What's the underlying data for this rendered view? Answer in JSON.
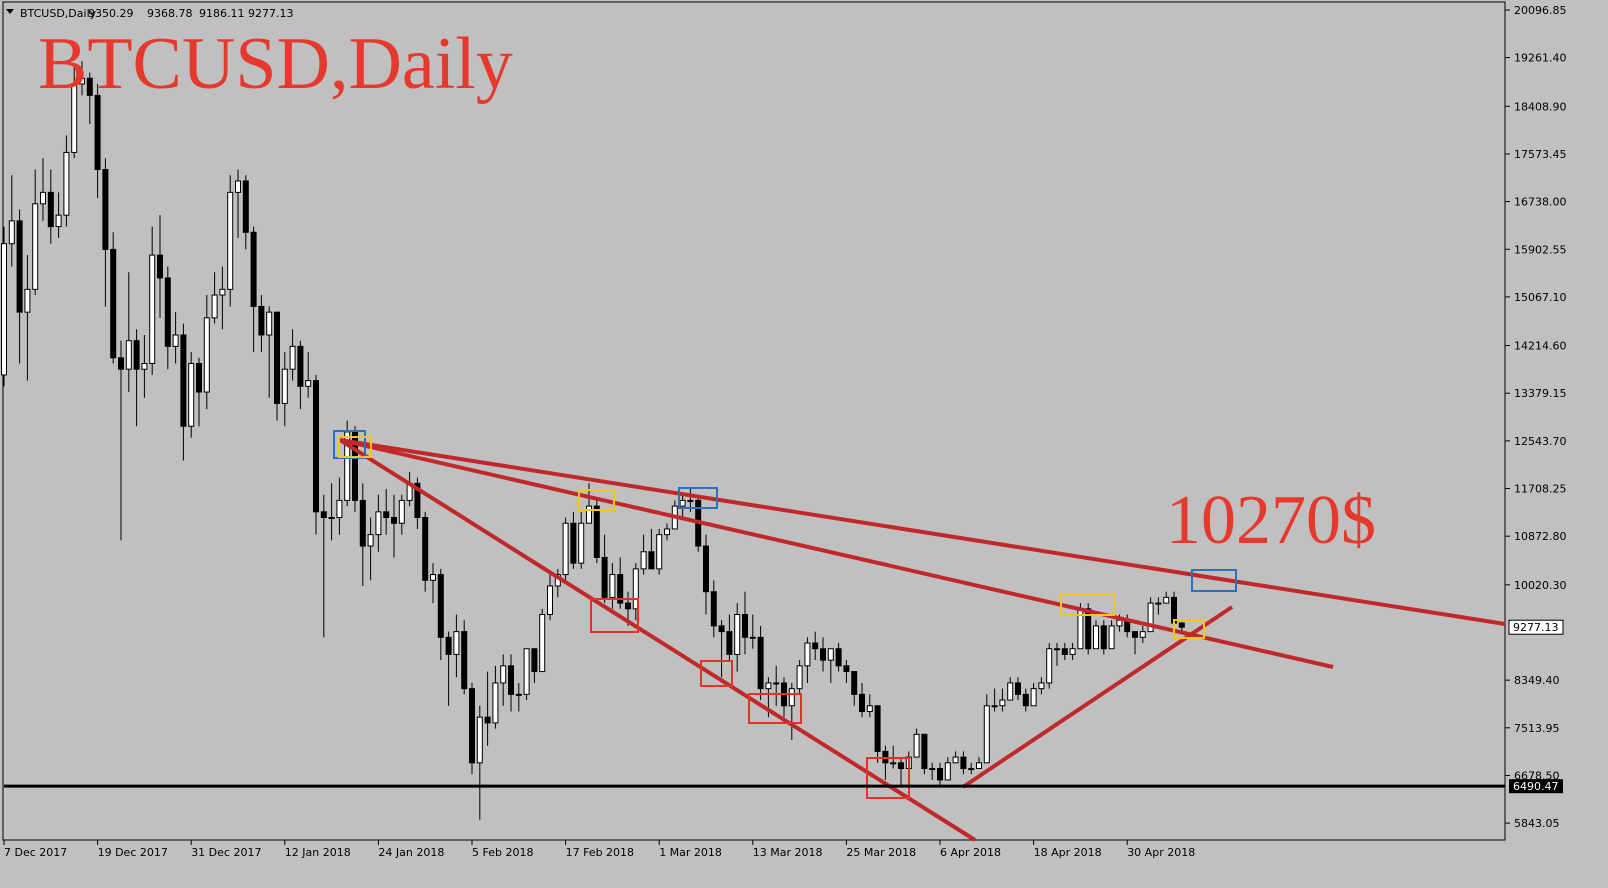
{
  "chart_data": {
    "type": "candlestick",
    "title": "BTCUSD,Daily",
    "annotation": "10270$",
    "background": "#c0c0c0",
    "up_color": "#ffffff",
    "down_color": "#000000",
    "title_color": "#e5392e",
    "level": 6490.47,
    "categories": [
      "7 Dec 2017",
      null,
      null,
      null,
      null,
      null,
      null,
      null,
      null,
      null,
      null,
      null,
      "19 Dec 2017",
      null,
      null,
      null,
      null,
      null,
      null,
      null,
      null,
      null,
      null,
      null,
      "31 Dec 2017",
      null,
      null,
      null,
      null,
      null,
      null,
      null,
      null,
      null,
      null,
      null,
      "12 Jan 2018",
      null,
      null,
      null,
      null,
      null,
      null,
      null,
      null,
      null,
      null,
      null,
      "24 Jan 2018",
      null,
      null,
      null,
      null,
      null,
      null,
      null,
      null,
      null,
      null,
      null,
      "5 Feb 2018",
      null,
      null,
      null,
      null,
      null,
      null,
      null,
      null,
      null,
      null,
      null,
      "17 Feb 2018",
      null,
      null,
      null,
      null,
      null,
      null,
      null,
      null,
      null,
      null,
      null,
      "1 Mar 2018",
      null,
      null,
      null,
      null,
      null,
      null,
      null,
      null,
      null,
      null,
      null,
      "13 Mar 2018",
      null,
      null,
      null,
      null,
      null,
      null,
      null,
      null,
      null,
      null,
      null,
      "25 Mar 2018",
      null,
      null,
      null,
      null,
      null,
      null,
      null,
      null,
      null,
      null,
      null,
      "6 Apr 2018",
      null,
      null,
      null,
      null,
      null,
      null,
      null,
      null,
      null,
      null,
      null,
      "18 Apr 2018",
      null,
      null,
      null,
      null,
      null,
      null,
      null,
      null,
      null,
      null,
      null,
      "30 Apr 2018",
      null,
      null,
      null,
      null,
      null,
      null,
      null
    ],
    "open": [
      13700,
      16000,
      16400,
      14800,
      15200,
      16700,
      16900,
      16300,
      16500,
      17600,
      18800,
      18900,
      18600,
      17300,
      15900,
      14000,
      13800,
      14300,
      13800,
      13900,
      15800,
      15400,
      14200,
      14400,
      12800,
      13900,
      13400,
      14700,
      15100,
      15200,
      16900,
      17100,
      16200,
      14900,
      14400,
      14800,
      13200,
      13800,
      14200,
      13500,
      13600,
      11300,
      11200,
      11200,
      11500,
      12700,
      11500,
      10700,
      10900,
      11300,
      11200,
      11100,
      11500,
      11800,
      11200,
      10100,
      10200,
      9100,
      8800,
      9200,
      8200,
      6900,
      7700,
      7600,
      8300,
      8600,
      8100,
      8100,
      8900,
      8500,
      9500,
      10000,
      10200,
      11100,
      10400,
      11100,
      11400,
      10500,
      9800,
      10200,
      9700,
      9600,
      10300,
      10600,
      10300,
      10900,
      11000,
      11400,
      11500,
      11500,
      10700,
      9900,
      9300,
      9200,
      8800,
      9500,
      9100,
      9100,
      8200,
      8300,
      8300,
      7900,
      8200,
      8600,
      9000,
      8900,
      8700,
      8900,
      8600,
      8500,
      8100,
      7800,
      7900,
      7100,
      6900,
      6900,
      6800,
      7000,
      7400,
      6800,
      6800,
      6600,
      6900,
      7000,
      6800,
      6800,
      6900,
      7900,
      7900,
      8000,
      8300,
      8100,
      7900,
      8200,
      8300,
      8900,
      8900,
      8800,
      8900,
      9600,
      8900,
      9300,
      8900,
      9300,
      9400,
      9200,
      9100,
      9200,
      9700,
      9700,
      9800,
      9350.29
    ],
    "high": [
      16300,
      17200,
      16600,
      15800,
      17300,
      17500,
      17300,
      16900,
      17900,
      19100,
      19200,
      19000,
      18800,
      17500,
      16200,
      14300,
      15500,
      14500,
      14400,
      16300,
      16500,
      15600,
      14800,
      14600,
      14100,
      14000,
      15100,
      15500,
      15600,
      17200,
      17300,
      17200,
      16300,
      15100,
      14900,
      14800,
      14100,
      14500,
      14300,
      14100,
      13700,
      11600,
      11800,
      11900,
      12900,
      12800,
      11800,
      11200,
      11600,
      11700,
      11600,
      11600,
      12000,
      11900,
      11300,
      10400,
      10300,
      9200,
      9500,
      9400,
      8300,
      7900,
      8500,
      8600,
      8800,
      8800,
      8300,
      8900,
      8900,
      9600,
      10200,
      10300,
      11200,
      11300,
      11300,
      11800,
      11500,
      10900,
      10400,
      10500,
      9900,
      10400,
      10900,
      11000,
      11000,
      11100,
      11500,
      11600,
      11700,
      11600,
      10900,
      10100,
      9400,
      9500,
      9700,
      9900,
      9500,
      9300,
      8400,
      8600,
      8400,
      8300,
      8700,
      9100,
      9200,
      9100,
      8900,
      9000,
      8700,
      8500,
      8300,
      8100,
      7900,
      7200,
      7200,
      7000,
      7100,
      7500,
      7400,
      6900,
      6900,
      7000,
      7100,
      7100,
      6900,
      7000,
      8100,
      8200,
      8200,
      8400,
      8400,
      8200,
      8300,
      8400,
      9000,
      9000,
      9000,
      9000,
      9700,
      9700,
      9400,
      9400,
      9400,
      9500,
      9500,
      9200,
      9300,
      9800,
      9800,
      9900,
      9900,
      9368.78
    ],
    "low": [
      13500,
      15600,
      13900,
      13600,
      15100,
      16400,
      16000,
      16100,
      16300,
      17500,
      18600,
      18100,
      16800,
      14900,
      13900,
      10800,
      13400,
      12800,
      13300,
      13700,
      14700,
      13800,
      13900,
      12200,
      12600,
      12800,
      13100,
      14600,
      14500,
      14900,
      16100,
      15900,
      14100,
      14100,
      13300,
      12900,
      12800,
      13600,
      13100,
      13300,
      10900,
      9100,
      10800,
      10900,
      11400,
      11300,
      10000,
      10100,
      10600,
      10900,
      10500,
      10900,
      11400,
      11000,
      9900,
      9700,
      8700,
      7900,
      8400,
      8100,
      6700,
      5900,
      7200,
      7500,
      7900,
      7800,
      7800,
      8000,
      8300,
      8500,
      9400,
      9800,
      10100,
      10300,
      10300,
      11100,
      10400,
      9700,
      9600,
      9600,
      9300,
      9400,
      10200,
      10300,
      10200,
      10800,
      11000,
      11200,
      11300,
      10600,
      9500,
      9100,
      8400,
      8700,
      8500,
      8800,
      8900,
      8000,
      7700,
      7900,
      7700,
      7300,
      8100,
      8300,
      8700,
      8500,
      8300,
      8500,
      8300,
      7900,
      7700,
      7700,
      6900,
      6600,
      6800,
      6500,
      6800,
      7000,
      6700,
      6600,
      6500,
      6600,
      6900,
      6700,
      6700,
      6800,
      6900,
      7800,
      7800,
      8000,
      8000,
      7800,
      7900,
      8100,
      8200,
      8600,
      8700,
      8700,
      8900,
      8800,
      8900,
      8800,
      8900,
      9200,
      9100,
      8800,
      9000,
      9200,
      9500,
      9700,
      9300,
      9186.11
    ],
    "close": [
      16000,
      16400,
      14800,
      15200,
      16700,
      16900,
      16300,
      16500,
      17600,
      18800,
      18900,
      18600,
      17300,
      15900,
      14000,
      13800,
      14300,
      13800,
      13900,
      15800,
      15400,
      14200,
      14400,
      12800,
      13900,
      13400,
      14700,
      15100,
      15200,
      16900,
      17100,
      16200,
      14900,
      14400,
      14800,
      13200,
      13800,
      14200,
      13500,
      13600,
      11300,
      11200,
      11200,
      11500,
      12700,
      11500,
      10700,
      10900,
      11300,
      11200,
      11100,
      11500,
      11800,
      11200,
      10100,
      10200,
      9100,
      8800,
      9200,
      8200,
      6900,
      7700,
      7600,
      8300,
      8600,
      8100,
      8100,
      8900,
      8500,
      9500,
      10000,
      10200,
      11100,
      10400,
      11100,
      11400,
      10500,
      9800,
      10200,
      9700,
      9600,
      10300,
      10600,
      10300,
      10900,
      11000,
      11400,
      11500,
      11500,
      10700,
      9900,
      9300,
      9200,
      8800,
      9500,
      9100,
      9100,
      8200,
      8300,
      8300,
      7900,
      8200,
      8600,
      9000,
      8900,
      8700,
      8900,
      8600,
      8500,
      8100,
      7800,
      7900,
      7100,
      6900,
      6900,
      6800,
      7000,
      7400,
      6800,
      6800,
      6600,
      6900,
      7000,
      6800,
      6800,
      6900,
      7900,
      7900,
      8000,
      8300,
      8100,
      7900,
      8200,
      8300,
      8900,
      8900,
      8800,
      8900,
      9600,
      8900,
      9300,
      8900,
      9300,
      9400,
      9200,
      9100,
      9200,
      9700,
      9700,
      9800,
      9350.29,
      9277.13
    ],
    "ylim": [
      5547,
      20272
    ],
    "yticks": [
      20096.85,
      {
        "value": 19261.4,
        "label": "19261.40"
      },
      {
        "value": 18408.9,
        "label": "18408.90"
      },
      17573.45,
      {
        "value": 16738,
        "label": "16738.00"
      },
      15902.55,
      {
        "value": 15067.1,
        "label": "15067.10"
      },
      {
        "value": 14214.6,
        "label": "14214.60"
      },
      13379.15,
      {
        "value": 12543.7,
        "label": "12543.70"
      },
      11708.25,
      {
        "value": 10872.8,
        "label": "10872.80"
      },
      {
        "value": 10020.3,
        "label": "10020.30"
      },
      {
        "value": 8349.4,
        "label": "8349.40"
      },
      7513.95,
      {
        "value": 6678.5,
        "label": "6678.50"
      },
      5843.05
    ]
  }
}
